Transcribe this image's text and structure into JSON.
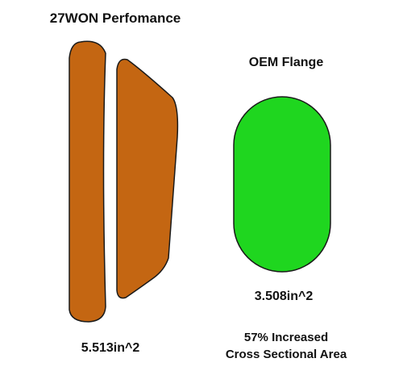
{
  "diagram": {
    "left_title": "27WON Perfomance",
    "right_title": "OEM Flange",
    "left_area": "5.513in^2",
    "right_area": "3.508in^2",
    "increase_line1": "57% Increased",
    "increase_line2": "Cross Sectional Area"
  },
  "colors": {
    "port_fill": "#c46612",
    "oem_fill": "#1fd61f",
    "outline": "#1a1a1a",
    "text": "#111111"
  }
}
